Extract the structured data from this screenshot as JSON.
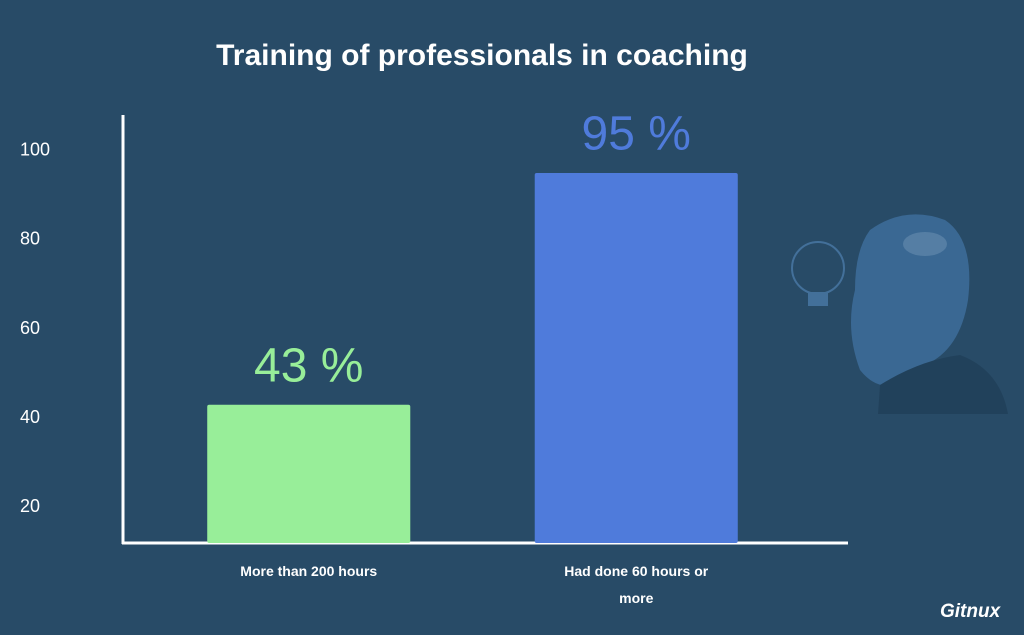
{
  "chart_data": {
    "type": "bar",
    "title": "Training of professionals in coaching",
    "categories": [
      "More than 200 hours",
      "Had done 60 hours or more"
    ],
    "series": [
      {
        "values": [
          43,
          95
        ],
        "value_labels": [
          "43 %",
          "95 %"
        ],
        "colors": [
          "#98ee99",
          "#4f7bdb"
        ]
      }
    ],
    "ylim": [
      12,
      108
    ],
    "yticks": [
      20,
      40,
      60,
      80,
      100
    ],
    "brand": "Gitnux"
  }
}
